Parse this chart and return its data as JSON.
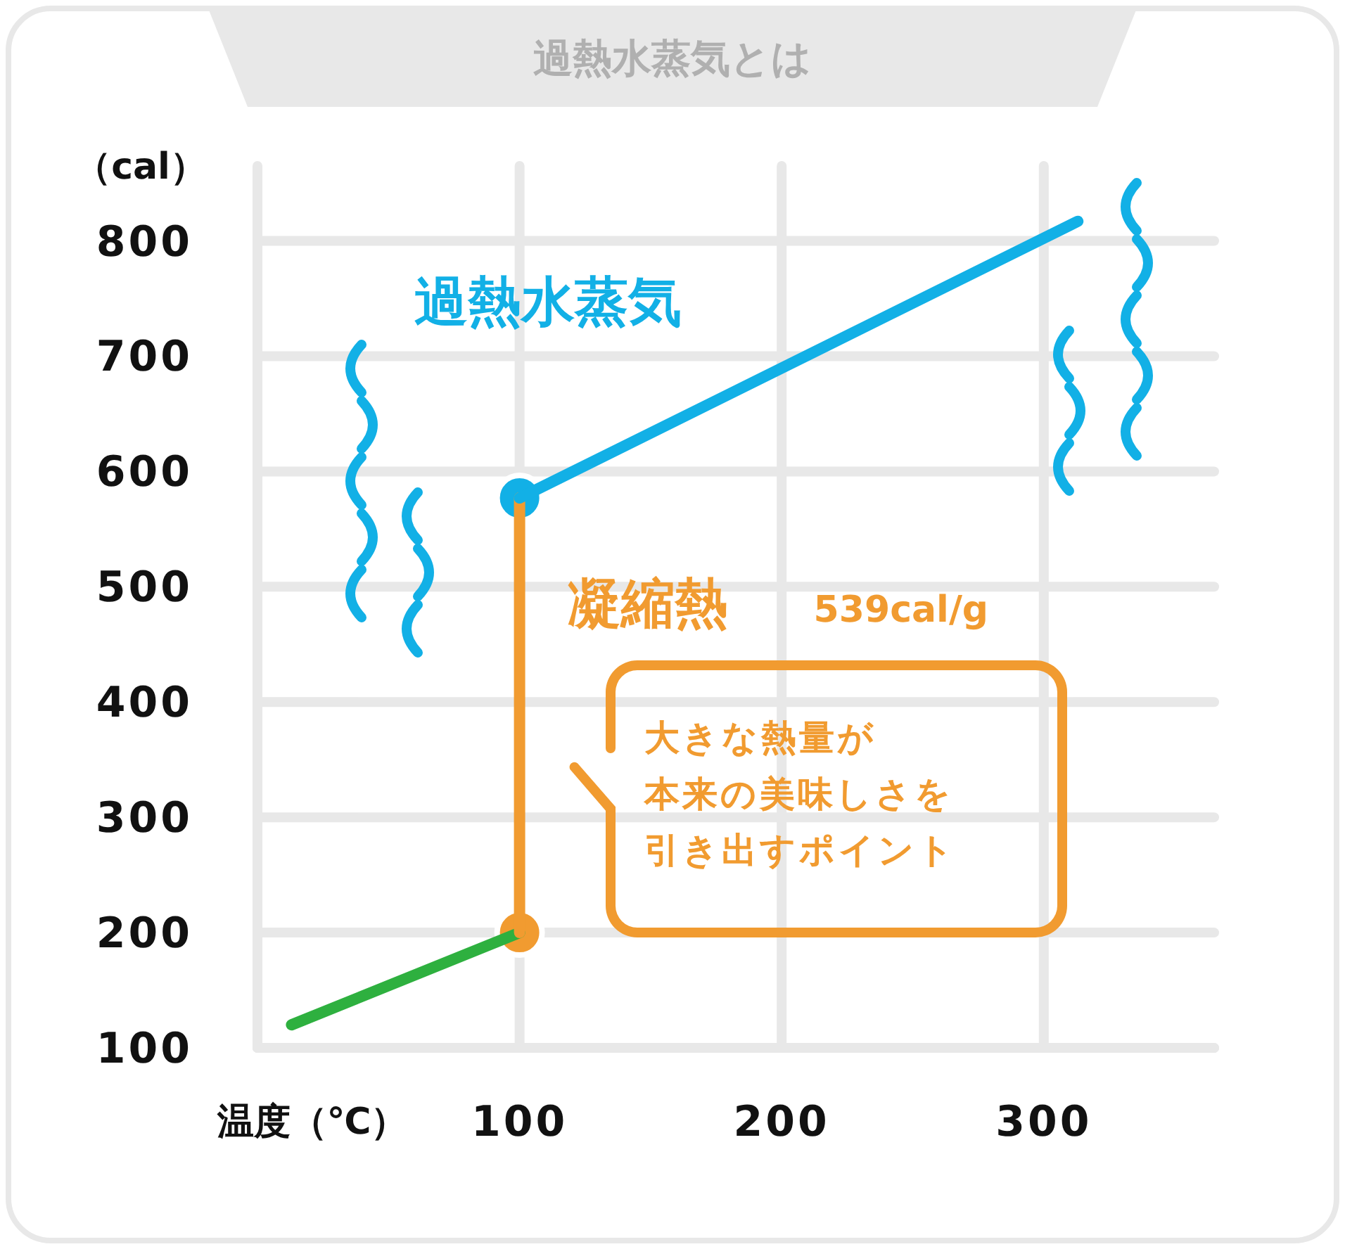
{
  "chart_data": {
    "type": "line",
    "title": "過熱水蒸気とは",
    "xlabel": "温度（℃）",
    "ylabel": "（cal）",
    "xlim": [
      0,
      365
    ],
    "xticks": [
      100,
      200,
      300
    ],
    "ylim": [
      100,
      865
    ],
    "yticks": [
      100,
      200,
      300,
      400,
      500,
      600,
      700,
      800
    ],
    "grid": true,
    "legend": false,
    "marker": "none",
    "line_style": "solid",
    "series": [
      {
        "color": "#2eb03f",
        "x": [
          13,
          100
        ],
        "values": [
          120,
          200
        ]
      },
      {
        "name": "凝縮熱",
        "color": "#f19b30",
        "x": [
          100,
          100
        ],
        "values": [
          200,
          577
        ]
      },
      {
        "name": "過熱水蒸気",
        "color": "#12b0e6",
        "x": [
          100,
          313
        ],
        "values": [
          577,
          817
        ]
      },
      {
        "type": "scatter",
        "marker": "circle",
        "x": [
          100,
          100
        ],
        "values": [
          200,
          577
        ],
        "colors": [
          "#f19b30",
          "#12b0e6"
        ]
      }
    ],
    "annotations": [
      "539cal/g",
      "大きな熱量が",
      "本来の美味しさを",
      "引き出すポイント"
    ]
  }
}
